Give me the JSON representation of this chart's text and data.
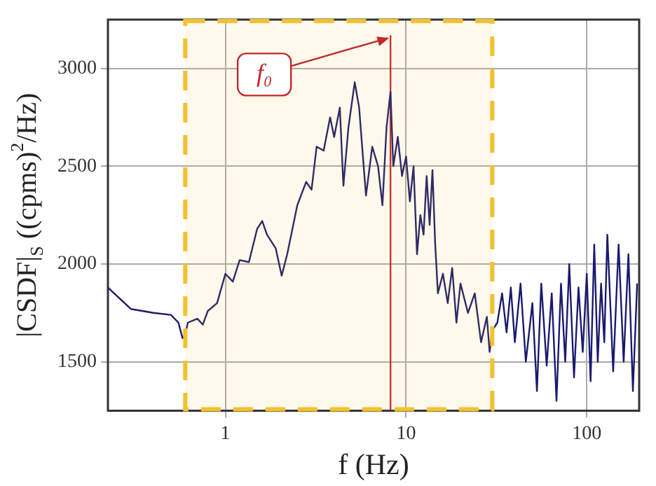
{
  "chart_data": {
    "type": "line",
    "xlabel": "f (Hz)",
    "ylabel": "|CSDF|$_{S}$ ((cpms)$^{2}$/Hz)",
    "log": "x",
    "grid": true,
    "marker": "none",
    "line_style": "solid",
    "legend": false,
    "xlim": [
      0.224,
      195
    ],
    "xticks": [
      1,
      10,
      100
    ],
    "ylim": [
      1250,
      3250
    ],
    "yticks": [
      1500,
      2000,
      2500,
      3000
    ],
    "series": [
      {
        "color": "#1a1a6e",
        "x": [
          0.224,
          0.3,
          0.4,
          0.5,
          0.55,
          0.58,
          0.6,
          0.62,
          0.7,
          0.75,
          0.8,
          0.9,
          1.0,
          1.1,
          1.2,
          1.35,
          1.5,
          1.6,
          1.7,
          1.9,
          2.05,
          2.2,
          2.5,
          2.8,
          3.0,
          3.2,
          3.5,
          3.8,
          4.0,
          4.3,
          4.5,
          4.8,
          5.2,
          5.5,
          6.0,
          6.5,
          7.0,
          7.4,
          7.8,
          8.2,
          8.5,
          9,
          9.5,
          10,
          10.5,
          11,
          11.5,
          12,
          12.5,
          13,
          13.5,
          14,
          14.5,
          15,
          16,
          17,
          18,
          19,
          20,
          22,
          24,
          26,
          28,
          29,
          30,
          32,
          34,
          36,
          38,
          40,
          43,
          46,
          50,
          53,
          56,
          60,
          64,
          68,
          72,
          76,
          80,
          85,
          90,
          95,
          100,
          105,
          110,
          115,
          120,
          125,
          130,
          140,
          150,
          160,
          170,
          180,
          190
        ],
        "values": [
          1880,
          1770,
          1750,
          1740,
          1700,
          1620,
          1640,
          1700,
          1720,
          1690,
          1760,
          1800,
          1950,
          1910,
          2020,
          2010,
          2180,
          2220,
          2150,
          2080,
          1940,
          2050,
          2300,
          2420,
          2380,
          2600,
          2580,
          2750,
          2650,
          2800,
          2400,
          2700,
          2930,
          2800,
          2350,
          2600,
          2500,
          2300,
          2700,
          2880,
          2500,
          2650,
          2450,
          2550,
          2320,
          2500,
          2050,
          2250,
          2150,
          2450,
          2200,
          2480,
          2100,
          1850,
          1950,
          1800,
          1980,
          1700,
          1900,
          1750,
          1850,
          1600,
          1730,
          1550,
          1660,
          1700,
          1850,
          1650,
          1880,
          1600,
          1900,
          1500,
          1800,
          1350,
          1900,
          1480,
          1850,
          1300,
          1900,
          1500,
          2000,
          1420,
          1880,
          1550,
          1950,
          1400,
          2100,
          1500,
          1900,
          1600,
          2150,
          1450,
          2100,
          1500,
          2050,
          1350,
          1900
        ]
      },
      {
        "type": "line",
        "color": "#c0282d",
        "x": [
          8.2,
          8.2
        ],
        "values": [
          1250,
          3170
        ]
      }
    ],
    "bands": [
      {
        "axis": "x",
        "from": 0.6,
        "to": 30,
        "color": "#f2c12e"
      }
    ],
    "annotations": [
      {
        "text": "f₀",
        "x": 8.2,
        "y": 3170
      }
    ]
  }
}
